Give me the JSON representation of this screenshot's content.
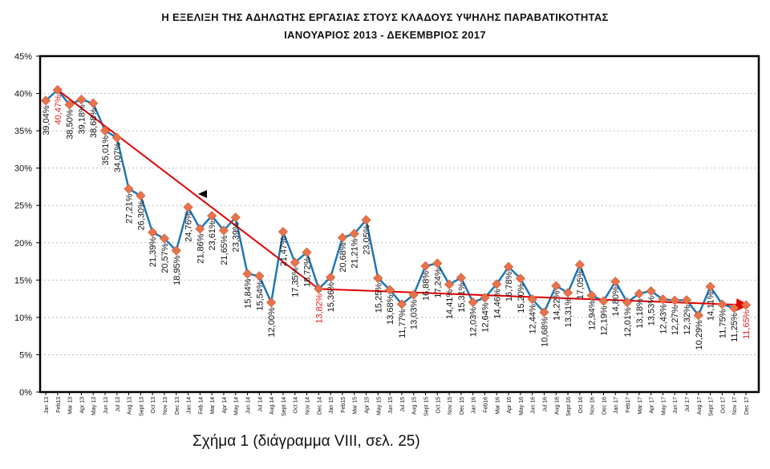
{
  "chart_data": {
    "type": "line",
    "title": "Η ΕΞΕΛΙΞΗ ΤΗΣ ΑΔΗΛΩΤΗΣ ΕΡΓΑΣΙΑΣ ΣΤΟΥΣ ΚΛΑΔΟΥΣ ΥΨΗΛΗΣ ΠΑΡΑΒΑΤΙΚΟΤΗΤΑΣ",
    "subtitle": "ΙΑΝΟΥΑΡΙΟΣ 2013 - ΔΕΚΕΜΒΡΙΟΣ 2017",
    "caption": "Σχήμα 1 (διάγραμμα VIII, σελ. 25)",
    "xlabel": "",
    "ylabel": "",
    "ylim": [
      0,
      45
    ],
    "yticks": [
      "0%",
      "5%",
      "10%",
      "15%",
      "20%",
      "25%",
      "30%",
      "35%",
      "40%",
      "45%"
    ],
    "grid": true,
    "categories": [
      "Jan 13",
      "Feb13",
      "Mar 13",
      "Apr 13",
      "May 13",
      "Jun 13",
      "Jul 13",
      "Aug 13",
      "Sept 13",
      "Oct 13",
      "Nov 13",
      "Dec 13",
      "Jan 14",
      "Feb 14",
      "Mar 14",
      "Apr 14",
      "May 14",
      "Jun 14",
      "Jul 14",
      "Aug 14",
      "Sept 14",
      "Oct 14",
      "Nov 14",
      "Dec 14",
      "Jan 15",
      "Feb15",
      "Mar 15",
      "Apr 15",
      "May 15",
      "Jun 15",
      "Jul 15",
      "Aug 15",
      "Sept 15",
      "Oct 15",
      "Nov 15",
      "Dec 15",
      "Jan 16",
      "Feb16",
      "Mar 16",
      "Apr 16",
      "May 16",
      "Jun 16",
      "Jul 16",
      "Aug 16",
      "Sept 16",
      "Oct 16",
      "Nov 16",
      "Dec 16",
      "Jan 17",
      "Feb17",
      "Mar 17",
      "Apr 17",
      "May 17",
      "Jun 17",
      "Jul 17",
      "Aug 17",
      "Sept 17",
      "Oct 17",
      "Nov 17",
      "Dec 17"
    ],
    "series": [
      {
        "values": [
          39.04,
          40.47,
          38.5,
          39.18,
          38.68,
          35.01,
          34.07,
          27.21,
          26.3,
          21.39,
          20.57,
          18.95,
          24.76,
          21.86,
          23.61,
          21.65,
          23.39,
          15.84,
          15.54,
          12.0,
          21.47,
          17.35,
          18.72,
          13.82,
          15.36,
          20.68,
          21.21,
          23.05,
          15.25,
          13.68,
          11.77,
          13.03,
          16.88,
          17.24,
          14.41,
          15.31,
          12.03,
          12.64,
          14.46,
          16.78,
          15.2,
          12.44,
          10.68,
          14.22,
          13.31,
          17.05,
          12.94,
          12.19,
          14.8,
          12.01,
          13.18,
          13.53,
          12.43,
          12.27,
          12.32,
          10.29,
          14.11,
          11.75,
          11.25,
          11.65
        ],
        "labels": [
          "39,04%",
          "40,47%",
          "38,50%",
          "39,18%",
          "38,68%",
          "35,01%",
          "34,07%",
          "27,21%",
          "26,30%",
          "21,39%",
          "20,57%",
          "18,95%",
          "24,76%",
          "21,86%",
          "23,61%",
          "21,65%",
          "23,39%",
          "15,84%",
          "15,54%",
          "12,00%",
          "21,47%",
          "17,35%",
          "18,72%",
          "13,82%",
          "15,36%",
          "20,68%",
          "21,21%",
          "23,05%",
          "15,25%",
          "13,68%",
          "11,77%",
          "13,03%",
          "16,88%",
          "17,24%",
          "14,41%",
          "15,31%",
          "12,03%",
          "12,64%",
          "14,46%",
          "16,78%",
          "15,20%",
          "12,44%",
          "10,68%",
          "14,22%",
          "13,31%",
          "17,05%",
          "12,94%",
          "12,19%",
          "14,80%",
          "12,01%",
          "13,18%",
          "13,53%",
          "12,43%",
          "12,27%",
          "12,32%",
          "10,29%",
          "14,11%",
          "11,75%",
          "11,25%",
          "11,65%"
        ],
        "highlighted_indices": [
          1,
          23,
          59
        ]
      }
    ],
    "trend_segments": [
      {
        "from": "Feb13",
        "to": "Dec 14"
      },
      {
        "from": "Dec 14",
        "to": "Dec 17"
      }
    ],
    "colors": {
      "line": "#1f77b4",
      "marker": "#e8734a",
      "trend": "#e00000",
      "highlight_label": "#e02020"
    }
  }
}
